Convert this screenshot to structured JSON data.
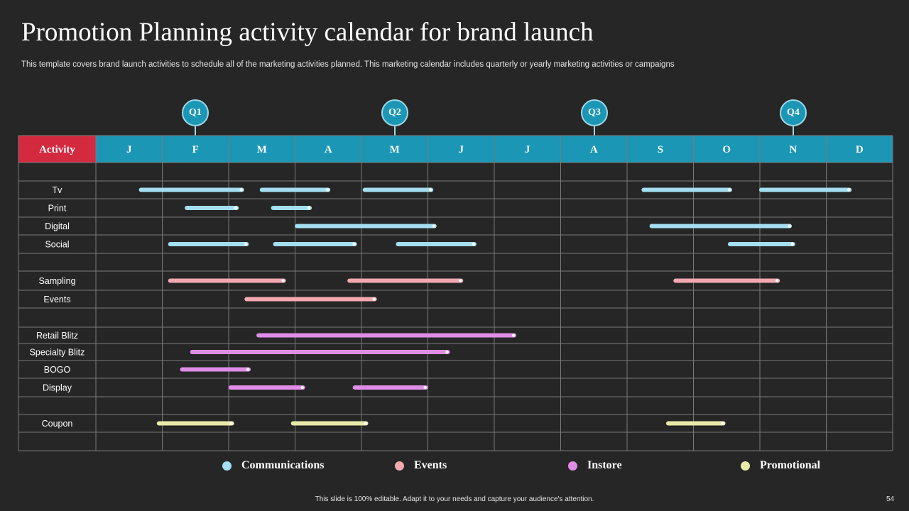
{
  "page": {
    "title": "Promotion Planning activity calendar for brand launch",
    "subtitle": "This template covers brand launch activities to schedule all of the marketing activities planned. This marketing calendar includes quarterly or yearly marketing activities or campaigns",
    "footer": "This slide is 100% editable.  Adapt it to your needs and capture your audience's attention.",
    "page_number": "54"
  },
  "colors": {
    "header_bg": "#1b97b5",
    "activity_header_bg": "#d42a3f",
    "grid": "#7a7a7a",
    "communications": "#a3dff0",
    "events": "#f4a8b0",
    "instore": "#e08de8",
    "promotional": "#eaeaa9"
  },
  "quarters": [
    "Q1",
    "Q2",
    "Q3",
    "Q4"
  ],
  "legend": [
    {
      "label": "Communications",
      "category": "communications"
    },
    {
      "label": "Events",
      "category": "events"
    },
    {
      "label": "Instore",
      "category": "instore"
    },
    {
      "label": "Promotional",
      "category": "promotional"
    }
  ],
  "chart_data": {
    "type": "gantt",
    "activity_header": "Activity",
    "months": [
      "J",
      "F",
      "M",
      "A",
      "M",
      "J",
      "J",
      "A",
      "S",
      "O",
      "N",
      "D"
    ],
    "rows": [
      {
        "label": "",
        "category": null,
        "bars": []
      },
      {
        "label": "Tv",
        "category": "communications",
        "bars": [
          [
            0.68,
            2.2
          ],
          [
            2.5,
            3.5
          ],
          [
            4.05,
            5.05
          ],
          [
            8.25,
            9.55
          ],
          [
            10.02,
            11.35
          ]
        ]
      },
      {
        "label": "Print",
        "category": "communications",
        "bars": [
          [
            1.37,
            2.12
          ],
          [
            2.67,
            3.22
          ]
        ]
      },
      {
        "label": "Digital",
        "category": "communications",
        "bars": [
          [
            3.03,
            5.1
          ],
          [
            8.37,
            10.45
          ]
        ]
      },
      {
        "label": "Social",
        "category": "communications",
        "bars": [
          [
            1.12,
            2.27
          ],
          [
            2.7,
            3.9
          ],
          [
            4.55,
            5.7
          ],
          [
            9.55,
            10.5
          ]
        ]
      },
      {
        "label": "",
        "category": null,
        "bars": []
      },
      {
        "label": "Sampling",
        "category": "events",
        "bars": [
          [
            1.12,
            2.83
          ],
          [
            3.82,
            5.5
          ],
          [
            8.73,
            10.27
          ]
        ]
      },
      {
        "label": "Events",
        "category": "events",
        "bars": [
          [
            2.27,
            4.2
          ]
        ]
      },
      {
        "label": "",
        "category": null,
        "bars": []
      },
      {
        "label": "Retail Blitz",
        "category": "instore",
        "bars": [
          [
            2.45,
            6.3
          ]
        ]
      },
      {
        "label": "Specialty Blitz",
        "category": "instore",
        "bars": [
          [
            1.45,
            5.3
          ]
        ]
      },
      {
        "label": "BOGO",
        "category": "instore",
        "bars": [
          [
            1.3,
            2.3
          ]
        ]
      },
      {
        "label": "Display",
        "category": "instore",
        "bars": [
          [
            2.03,
            3.12
          ],
          [
            3.9,
            4.97
          ]
        ]
      },
      {
        "label": "",
        "category": null,
        "bars": []
      },
      {
        "label": "Coupon",
        "category": "promotional",
        "bars": [
          [
            0.95,
            2.05
          ],
          [
            2.97,
            4.07
          ],
          [
            8.62,
            9.45
          ]
        ]
      },
      {
        "label": "",
        "category": null,
        "bars": []
      }
    ]
  }
}
